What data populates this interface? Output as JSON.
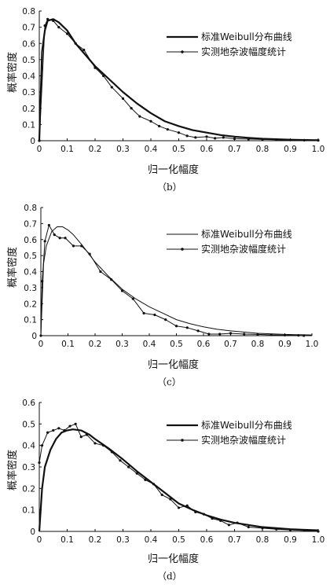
{
  "figure": {
    "panels": [
      {
        "caption": "（b）",
        "chart_data": {
          "type": "line",
          "xlabel": "归一化幅度",
          "ylabel": "概率密度",
          "xlim": [
            0,
            1.0
          ],
          "ylim": [
            0,
            0.8
          ],
          "xticks": [
            "0",
            "0.1",
            "0.2",
            "0.3",
            "0.4",
            "0.5",
            "0.6",
            "0.7",
            "0.8",
            "0.9",
            "1.0"
          ],
          "yticks": [
            "0",
            "0.1",
            "0.2",
            "0.3",
            "0.4",
            "0.5",
            "0.6",
            "0.7",
            "0.8"
          ],
          "legend_position": "top-right",
          "series": [
            {
              "name": "标准Weibull分布曲线",
              "style": "thick",
              "x": [
                0,
                0.01,
                0.02,
                0.03,
                0.05,
                0.07,
                0.1,
                0.13,
                0.17,
                0.2,
                0.25,
                0.3,
                0.35,
                0.4,
                0.45,
                0.5,
                0.55,
                0.6,
                0.65,
                0.7,
                0.75,
                0.8,
                0.9,
                1.0
              ],
              "y": [
                0,
                0.55,
                0.68,
                0.74,
                0.75,
                0.73,
                0.68,
                0.6,
                0.52,
                0.46,
                0.38,
                0.3,
                0.23,
                0.17,
                0.12,
                0.09,
                0.065,
                0.05,
                0.035,
                0.025,
                0.018,
                0.012,
                0.006,
                0.003
              ]
            },
            {
              "name": "实测地杂波幅度统计",
              "style": "thin-markers",
              "x": [
                0,
                0.02,
                0.03,
                0.05,
                0.07,
                0.1,
                0.13,
                0.16,
                0.2,
                0.23,
                0.26,
                0.3,
                0.33,
                0.36,
                0.4,
                0.43,
                0.46,
                0.5,
                0.53,
                0.56,
                0.6,
                0.63,
                0.66,
                0.7,
                0.75,
                0.8,
                0.85,
                0.9,
                0.95,
                1.0
              ],
              "y": [
                0,
                0.71,
                0.75,
                0.74,
                0.7,
                0.66,
                0.6,
                0.56,
                0.45,
                0.4,
                0.33,
                0.26,
                0.2,
                0.15,
                0.12,
                0.09,
                0.07,
                0.05,
                0.03,
                0.02,
                0.025,
                0.015,
                0.02,
                0.012,
                0.01,
                0.008,
                0.006,
                0.004,
                0.003,
                0.002
              ]
            }
          ]
        }
      },
      {
        "caption": "（c）",
        "chart_data": {
          "type": "line",
          "xlabel": "归一化幅度",
          "ylabel": "概率密度",
          "xlim": [
            0,
            1.0
          ],
          "ylim": [
            0,
            0.8
          ],
          "xticks": [
            "0",
            "0.1",
            "0.2",
            "0.3",
            "0.4",
            "0.5",
            "0.6",
            "0.7",
            "0.8",
            "0.9",
            "1.0"
          ],
          "yticks": [
            "0",
            "0.1",
            "0.2",
            "0.3",
            "0.4",
            "0.5",
            "0.6",
            "0.7",
            "0.8"
          ],
          "legend_position": "top-right",
          "series": [
            {
              "name": "标准Weibull分布曲线",
              "style": "thin",
              "x": [
                0,
                0.01,
                0.02,
                0.04,
                0.06,
                0.08,
                0.1,
                0.12,
                0.15,
                0.2,
                0.25,
                0.3,
                0.35,
                0.4,
                0.45,
                0.5,
                0.55,
                0.6,
                0.65,
                0.7,
                0.8,
                0.9,
                1.0
              ],
              "y": [
                0,
                0.45,
                0.56,
                0.65,
                0.68,
                0.68,
                0.66,
                0.63,
                0.57,
                0.46,
                0.37,
                0.29,
                0.23,
                0.18,
                0.14,
                0.1,
                0.075,
                0.055,
                0.04,
                0.03,
                0.015,
                0.008,
                0.004
              ]
            },
            {
              "name": "实测地杂波幅度统计",
              "style": "thin-markers",
              "x": [
                0,
                0.005,
                0.015,
                0.03,
                0.05,
                0.07,
                0.09,
                0.12,
                0.15,
                0.18,
                0.22,
                0.26,
                0.3,
                0.34,
                0.38,
                0.42,
                0.46,
                0.5,
                0.54,
                0.58,
                0.62,
                0.66,
                0.7,
                0.75,
                0.8,
                0.85,
                0.9,
                0.95,
                0.97
              ],
              "y": [
                0,
                0.34,
                0.59,
                0.69,
                0.63,
                0.61,
                0.61,
                0.56,
                0.56,
                0.51,
                0.4,
                0.35,
                0.28,
                0.23,
                0.14,
                0.13,
                0.1,
                0.06,
                0.05,
                0.03,
                0.01,
                0.01,
                0.015,
                0.01,
                0.008,
                0.005,
                0.003,
                0.002,
                0.0
              ]
            }
          ]
        }
      },
      {
        "caption": "（d）",
        "chart_data": {
          "type": "line",
          "xlabel": "归一化幅度",
          "ylabel": "概率密度",
          "xlim": [
            0,
            1.0
          ],
          "ylim": [
            0,
            0.6
          ],
          "xticks": [
            "0",
            "0.1",
            "0.2",
            "0.3",
            "0.4",
            "0.5",
            "0.6",
            "0.7",
            "0.8",
            "0.9",
            "1.0"
          ],
          "yticks": [
            "0",
            "0.1",
            "0.2",
            "0.3",
            "0.4",
            "0.5",
            "0.6"
          ],
          "legend_position": "top-right",
          "series": [
            {
              "name": "标准Weibull分布曲线",
              "style": "thick",
              "x": [
                0,
                0.01,
                0.02,
                0.04,
                0.06,
                0.08,
                0.1,
                0.12,
                0.15,
                0.18,
                0.2,
                0.25,
                0.3,
                0.35,
                0.4,
                0.45,
                0.5,
                0.55,
                0.6,
                0.65,
                0.7,
                0.8,
                0.9,
                1.0
              ],
              "y": [
                0,
                0.2,
                0.3,
                0.38,
                0.43,
                0.46,
                0.47,
                0.475,
                0.47,
                0.45,
                0.43,
                0.385,
                0.335,
                0.28,
                0.23,
                0.18,
                0.13,
                0.1,
                0.075,
                0.055,
                0.04,
                0.02,
                0.01,
                0.005
              ]
            },
            {
              "name": "实测地杂波幅度统计",
              "style": "thin-markers",
              "x": [
                0,
                0.01,
                0.03,
                0.05,
                0.07,
                0.09,
                0.11,
                0.13,
                0.15,
                0.17,
                0.2,
                0.23,
                0.26,
                0.29,
                0.32,
                0.35,
                0.38,
                0.41,
                0.44,
                0.47,
                0.5,
                0.53,
                0.56,
                0.59,
                0.62,
                0.65,
                0.68,
                0.71,
                0.75,
                0.8,
                0.85,
                0.9,
                0.95,
                1.0
              ],
              "y": [
                0.32,
                0.4,
                0.46,
                0.47,
                0.48,
                0.47,
                0.49,
                0.5,
                0.44,
                0.45,
                0.41,
                0.4,
                0.37,
                0.33,
                0.3,
                0.27,
                0.24,
                0.22,
                0.17,
                0.15,
                0.11,
                0.12,
                0.09,
                0.08,
                0.06,
                0.05,
                0.03,
                0.04,
                0.02,
                0.015,
                0.01,
                0.007,
                0.004,
                0.0
              ]
            }
          ]
        }
      }
    ]
  }
}
